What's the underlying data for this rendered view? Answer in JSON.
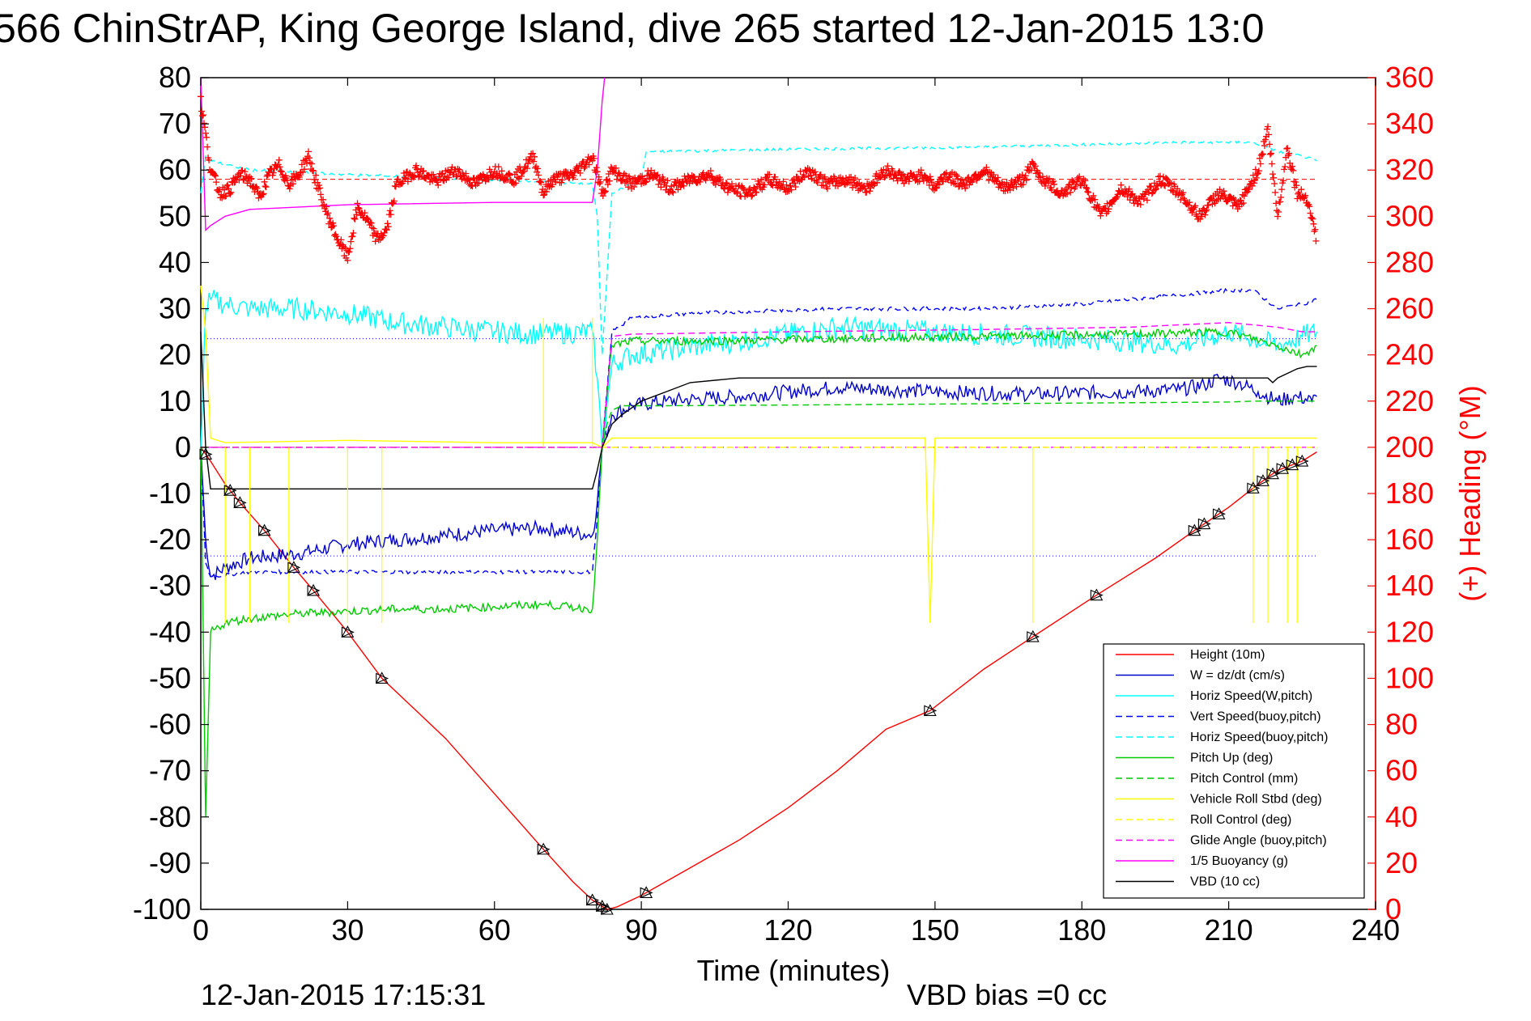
{
  "chart_data": {
    "type": "line",
    "title": "566 ChinStrAP, King George Island, dive 265 started 12-Jan-2015 13:0",
    "xlabel": "Time (minutes)",
    "ylabel_right": "(+) Heading (°M)",
    "xlim": [
      0,
      240
    ],
    "ylim_left": [
      -100,
      80
    ],
    "ylim_right": [
      0,
      360
    ],
    "x_ticks": [
      "0",
      "30",
      "60",
      "90",
      "120",
      "150",
      "180",
      "210",
      "240"
    ],
    "y_ticks_left": [
      "80",
      "70",
      "60",
      "50",
      "40",
      "30",
      "20",
      "10",
      "0",
      "-10",
      "-20",
      "-30",
      "-40",
      "-50",
      "-60",
      "-70",
      "-80",
      "-90",
      "-100"
    ],
    "y_ticks_right": [
      "360",
      "340",
      "320",
      "300",
      "280",
      "260",
      "240",
      "220",
      "200",
      "180",
      "160",
      "140",
      "120",
      "100",
      "80",
      "60",
      "40",
      "20",
      "0"
    ],
    "footer_left": "12-Jan-2015 17:15:31",
    "footer_right": "VBD bias =0 cc",
    "legend_position": "bottom-right",
    "heading_mean": 316,
    "series": [
      {
        "name": "Height (10m)",
        "color": "#ff0000",
        "style": "solid",
        "x": [
          0,
          2,
          5,
          8,
          13,
          19,
          23,
          30,
          37,
          50,
          60,
          70,
          76,
          80,
          83,
          85,
          90,
          100,
          110,
          120,
          130,
          140,
          149,
          160,
          170,
          183,
          195,
          203,
          210,
          216,
          220,
          225,
          228
        ],
        "y": [
          0,
          -3,
          -8,
          -12,
          -18,
          -26,
          -31,
          -40,
          -50,
          -63,
          -75,
          -87,
          -94,
          -98,
          -100,
          -99.5,
          -97,
          -91,
          -85,
          -78,
          -70,
          -61,
          -57,
          -48,
          -41,
          -32,
          -24,
          -18,
          -13,
          -8,
          -5,
          -3,
          -1
        ]
      },
      {
        "name": "W = dz/dt (cm/s)",
        "color": "#0000cc",
        "style": "solid",
        "x": [
          0,
          1,
          2,
          5,
          10,
          20,
          30,
          40,
          50,
          60,
          70,
          80,
          81,
          82,
          84,
          88,
          95,
          110,
          130,
          150,
          170,
          190,
          200,
          205,
          208,
          212,
          216,
          220,
          224,
          227,
          228
        ],
        "y": [
          0,
          -20,
          -28,
          -26,
          -24,
          -23,
          -21,
          -20,
          -19,
          -18,
          -17.5,
          -19,
          -12,
          0,
          7,
          9,
          10,
          11,
          13,
          12,
          11.5,
          12,
          12.5,
          13.5,
          15,
          14,
          12,
          10,
          11,
          10,
          11
        ]
      },
      {
        "name": "Horiz Speed(W,pitch)",
        "color": "#00ffff",
        "style": "solid",
        "x": [
          0,
          1,
          2,
          5,
          10,
          20,
          30,
          40,
          50,
          60,
          70,
          80,
          81,
          82,
          84,
          88,
          95,
          110,
          130,
          150,
          170,
          190,
          200,
          210,
          220,
          225,
          228
        ],
        "y": [
          0,
          30,
          32,
          31,
          30,
          30,
          29,
          27,
          26,
          25,
          24.5,
          25,
          15,
          0,
          18,
          20,
          21,
          23,
          26,
          25,
          24,
          23,
          22,
          25,
          22,
          24,
          25
        ]
      },
      {
        "name": "Vert Speed(buoy,pitch)",
        "color": "#0000ff",
        "style": "dashed",
        "x": [
          0,
          1,
          2,
          10,
          30,
          60,
          80,
          81,
          82,
          84,
          88,
          100,
          130,
          160,
          180,
          200,
          210,
          215,
          220,
          225,
          228
        ],
        "y": [
          0,
          -25,
          -28,
          -27,
          -27,
          -27,
          -27,
          -15,
          0,
          25,
          28,
          29,
          30,
          30,
          31,
          33,
          34,
          34,
          30,
          31,
          32
        ]
      },
      {
        "name": "Horiz Speed(buoy,pitch)",
        "color": "#00ffff",
        "style": "dashed",
        "x": [
          0,
          1,
          2,
          10,
          30,
          60,
          80,
          81,
          82,
          84,
          90,
          91,
          120,
          160,
          180,
          200,
          215,
          220,
          225,
          228
        ],
        "y": [
          55,
          63,
          62,
          60,
          59,
          58,
          57,
          50,
          20,
          55,
          58,
          64,
          64.5,
          65,
          65.5,
          66,
          66,
          64,
          63,
          62
        ]
      },
      {
        "name": "Pitch Up (deg)",
        "color": "#00cc00",
        "style": "solid",
        "x": [
          0,
          1,
          2,
          5,
          10,
          20,
          30,
          40,
          50,
          60,
          70,
          80,
          81,
          82,
          84,
          88,
          100,
          130,
          160,
          190,
          210,
          220,
          225,
          228
        ],
        "y": [
          0,
          -80,
          -40,
          -38,
          -37,
          -36,
          -35.5,
          -35,
          -35,
          -34.5,
          -34,
          -35,
          -20,
          0,
          22,
          23,
          23,
          23.5,
          24,
          24.5,
          25,
          22,
          20,
          22
        ]
      },
      {
        "name": "Pitch Control (mm)",
        "color": "#00cc00",
        "style": "dashed",
        "x": [
          0,
          82,
          83,
          84,
          86,
          95,
          130,
          170,
          210,
          215,
          220,
          224,
          228
        ],
        "y": [
          0,
          0,
          5,
          8,
          9,
          9,
          9.2,
          9.5,
          9.8,
          10,
          10,
          10,
          10
        ]
      },
      {
        "name": "Vehicle Roll Stbd (deg)",
        "color": "#ffff00",
        "style": "solid",
        "x": [
          0,
          1,
          2,
          5,
          30,
          60,
          80,
          82,
          84,
          100,
          148,
          149,
          150,
          170,
          200,
          215,
          220,
          228
        ],
        "y": [
          35,
          25,
          2,
          1,
          1.5,
          1,
          1,
          0,
          2,
          2,
          2,
          -38,
          2,
          2,
          2,
          2,
          2,
          2
        ]
      },
      {
        "name": "Roll Control (deg)",
        "color": "#ffff00",
        "style": "dashed",
        "x": [
          0,
          2,
          10,
          30,
          60,
          80,
          82,
          84,
          120,
          160,
          200,
          215,
          220,
          225,
          228
        ],
        "y": [
          0,
          0,
          0,
          0,
          0,
          0,
          0,
          0,
          0,
          0,
          0,
          0,
          0,
          0,
          0
        ]
      },
      {
        "name": "Glide Angle (buoy,pitch)",
        "color": "#ff00ff",
        "style": "dashed",
        "x": [
          0,
          2,
          30,
          60,
          82,
          84,
          88,
          120,
          160,
          190,
          210,
          220,
          225,
          228
        ],
        "y": [
          0,
          0,
          0,
          0,
          0,
          24,
          24.5,
          25,
          25.5,
          26,
          27,
          26,
          25,
          25
        ]
      },
      {
        "name": "1/5 Buoyancy (g)",
        "color": "#ff00ff",
        "style": "solid",
        "x": [
          0,
          1,
          2,
          5,
          10,
          20,
          30,
          60,
          80,
          81,
          82,
          82.5
        ],
        "y": [
          80,
          47,
          48,
          50,
          51.5,
          52,
          52.5,
          53,
          53,
          60,
          75,
          80
        ]
      },
      {
        "name": "VBD (10 cc)",
        "color": "#000000",
        "style": "solid",
        "x": [
          0,
          1,
          2,
          80,
          81,
          82,
          84,
          86,
          90,
          95,
          100,
          110,
          130,
          160,
          190,
          210,
          218,
          219,
          220,
          222,
          224,
          226,
          228
        ],
        "y": [
          25,
          0,
          -9,
          -9,
          -5,
          0,
          5,
          7,
          10,
          12,
          14,
          15,
          15,
          15,
          15,
          15,
          15,
          14,
          15,
          16,
          17,
          17.5,
          17.5
        ]
      }
    ],
    "heading_series": {
      "name": "(+) Heading",
      "color": "#ff0000",
      "x": [
        0,
        2,
        4,
        6,
        8,
        10,
        12,
        14,
        16,
        18,
        20,
        22,
        24,
        26,
        28,
        30,
        32,
        34,
        36,
        38,
        40,
        44,
        48,
        52,
        56,
        60,
        64,
        68,
        70,
        72,
        76,
        80,
        82,
        84,
        88,
        92,
        96,
        100,
        104,
        108,
        112,
        116,
        120,
        124,
        128,
        132,
        136,
        140,
        144,
        148,
        150,
        152,
        156,
        160,
        164,
        168,
        170,
        172,
        176,
        180,
        184,
        188,
        192,
        196,
        200,
        204,
        208,
        212,
        216,
        218,
        220,
        222,
        224,
        226,
        228
      ],
      "y": [
        350,
        320,
        310,
        312,
        318,
        316,
        308,
        318,
        322,
        314,
        318,
        326,
        312,
        300,
        290,
        282,
        304,
        298,
        290,
        294,
        314,
        320,
        315,
        320,
        314,
        320,
        316,
        326,
        310,
        316,
        318,
        326,
        310,
        320,
        314,
        318,
        312,
        316,
        318,
        312,
        310,
        316,
        312,
        320,
        314,
        316,
        312,
        320,
        316,
        318,
        312,
        318,
        314,
        320,
        312,
        316,
        322,
        316,
        310,
        316,
        300,
        312,
        306,
        316,
        310,
        300,
        310,
        304,
        320,
        338,
        300,
        330,
        310,
        308,
        290
      ]
    }
  }
}
